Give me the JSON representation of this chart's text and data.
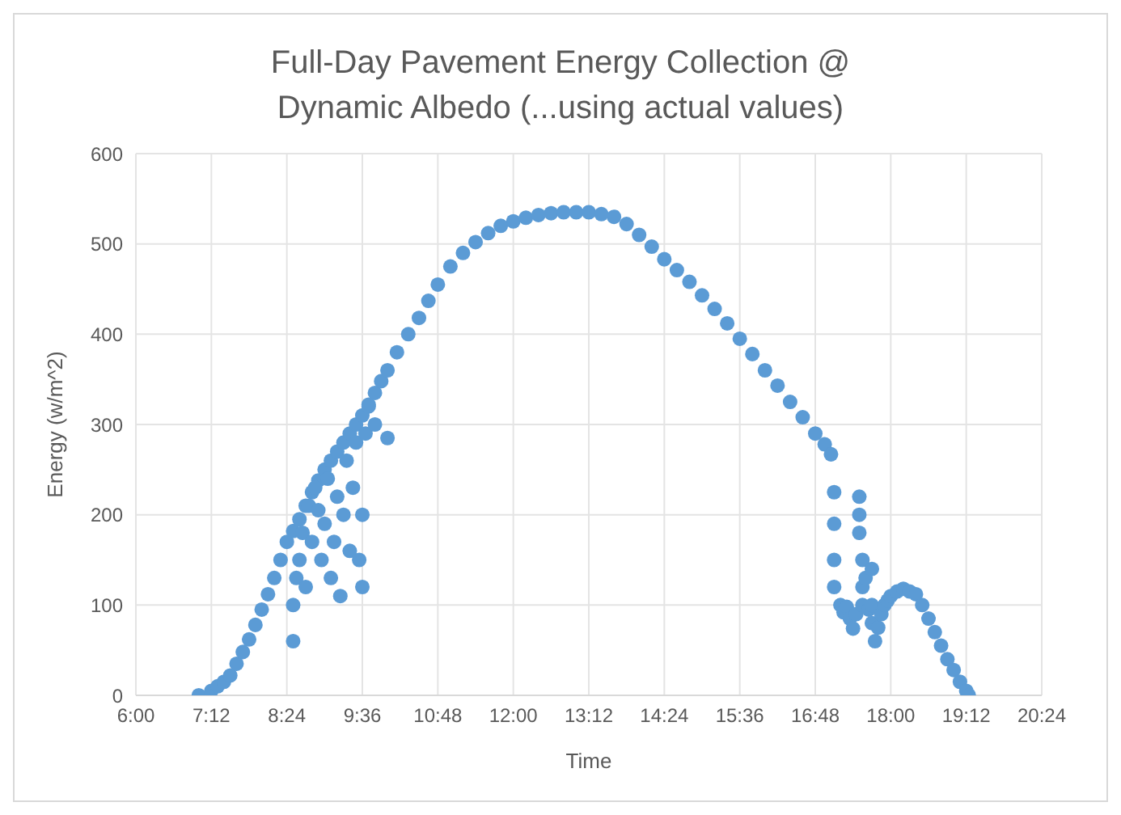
{
  "chart_data": {
    "type": "scatter",
    "title": "Full-Day Pavement Energy Collection @ Dynamic Albedo (...using actual values)",
    "xlabel": "Time",
    "ylabel": "Energy (w/m^2)",
    "xlim": [
      6,
      20.4
    ],
    "xticks": [
      {
        "value": 6,
        "label": "6:00"
      },
      {
        "value": 7.2,
        "label": "7:12"
      },
      {
        "value": 8.4,
        "label": "8:24"
      },
      {
        "value": 9.6,
        "label": "9:36"
      },
      {
        "value": 10.8,
        "label": "10:48"
      },
      {
        "value": 12,
        "label": "12:00"
      },
      {
        "value": 13.2,
        "label": "13:12"
      },
      {
        "value": 14.4,
        "label": "14:24"
      },
      {
        "value": 15.6,
        "label": "15:36"
      },
      {
        "value": 16.8,
        "label": "16:48"
      },
      {
        "value": 18,
        "label": "18:00"
      },
      {
        "value": 19.2,
        "label": "19:12"
      },
      {
        "value": 20.4,
        "label": "20:24"
      }
    ],
    "ylim": [
      0,
      600
    ],
    "yticks": [
      0,
      100,
      200,
      300,
      400,
      500,
      600
    ],
    "grid": true,
    "marker": "circle",
    "series": [
      {
        "color": "#5b9bd5",
        "x": [
          7.0,
          7.2,
          7.3,
          7.4,
          7.5,
          7.6,
          7.7,
          7.8,
          7.9,
          8.0,
          8.1,
          8.2,
          8.3,
          8.4,
          8.5,
          8.6,
          8.7,
          8.8,
          8.9,
          9.0,
          9.1,
          9.2,
          9.3,
          9.4,
          9.5,
          9.6,
          9.7,
          9.8,
          9.9,
          10.0,
          10.15,
          10.33,
          10.5,
          10.65,
          10.8,
          11.0,
          11.2,
          11.4,
          11.6,
          11.8,
          12.0,
          12.2,
          12.4,
          12.6,
          12.8,
          13.0,
          13.2,
          13.4,
          13.6,
          13.8,
          14.0,
          14.2,
          14.4,
          14.6,
          14.8,
          15.0,
          15.2,
          15.4,
          15.6,
          15.8,
          16.0,
          16.2,
          16.4,
          16.6,
          16.8,
          16.95,
          17.05,
          8.5,
          8.5,
          8.55,
          8.6,
          8.65,
          8.7,
          8.75,
          8.8,
          8.85,
          8.9,
          8.95,
          9.0,
          9.05,
          9.1,
          9.15,
          9.2,
          9.25,
          9.3,
          9.35,
          9.4,
          9.45,
          9.5,
          9.55,
          9.6,
          9.6,
          9.65,
          9.7,
          9.8,
          10.0,
          17.1,
          17.1,
          17.1,
          17.1,
          17.2,
          17.25,
          17.3,
          17.35,
          17.4,
          17.45,
          17.5,
          17.5,
          17.5,
          17.55,
          17.55,
          17.55,
          17.6,
          17.65,
          17.7,
          17.7,
          17.7,
          17.75,
          17.8,
          17.85,
          17.9,
          17.95,
          18.0,
          18.1,
          18.2,
          18.3,
          18.4,
          18.5,
          18.6,
          18.7,
          18.8,
          18.9,
          19.0,
          19.1,
          19.2,
          19.24
        ],
        "values": [
          0,
          5,
          10,
          15,
          22,
          35,
          48,
          62,
          78,
          95,
          112,
          130,
          150,
          170,
          182,
          195,
          210,
          225,
          238,
          250,
          260,
          270,
          280,
          290,
          300,
          310,
          322,
          335,
          348,
          360,
          380,
          400,
          418,
          437,
          455,
          475,
          490,
          502,
          512,
          520,
          525,
          529,
          532,
          534,
          535,
          535,
          535,
          533,
          530,
          522,
          510,
          497,
          483,
          471,
          458,
          443,
          428,
          412,
          395,
          378,
          360,
          343,
          325,
          308,
          290,
          278,
          267,
          60,
          100,
          130,
          150,
          180,
          120,
          210,
          170,
          230,
          205,
          150,
          190,
          240,
          130,
          170,
          220,
          110,
          200,
          260,
          160,
          230,
          280,
          150,
          120,
          200,
          290,
          320,
          300,
          285,
          225,
          190,
          150,
          120,
          100,
          92,
          98,
          85,
          74,
          90,
          180,
          200,
          220,
          150,
          120,
          100,
          130,
          95,
          140,
          100,
          80,
          60,
          75,
          90,
          100,
          105,
          110,
          115,
          118,
          115,
          112,
          100,
          85,
          70,
          55,
          40,
          28,
          15,
          5,
          0
        ]
      }
    ]
  }
}
